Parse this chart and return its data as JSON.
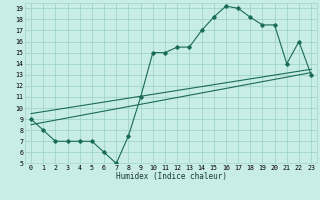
{
  "xlabel": "Humidex (Indice chaleur)",
  "bg_color": "#c8ece6",
  "grid_color": "#a0d4cc",
  "line_color": "#1a6b5a",
  "xlim": [
    -0.5,
    23.5
  ],
  "ylim": [
    5,
    19.5
  ],
  "xticks": [
    0,
    1,
    2,
    3,
    4,
    5,
    6,
    7,
    8,
    9,
    10,
    11,
    12,
    13,
    14,
    15,
    16,
    17,
    18,
    19,
    20,
    21,
    22,
    23
  ],
  "yticks": [
    5,
    6,
    7,
    8,
    9,
    10,
    11,
    12,
    13,
    14,
    15,
    16,
    17,
    18,
    19
  ],
  "line1_x": [
    0,
    1,
    2,
    3,
    4,
    5,
    6,
    7,
    8,
    9,
    10,
    11,
    12,
    13,
    14,
    15,
    16,
    17,
    18,
    19,
    20,
    21,
    22,
    23
  ],
  "line1_y": [
    9,
    8,
    7,
    7,
    7,
    7,
    6,
    5,
    7.5,
    11,
    15,
    15,
    15.5,
    15.5,
    17,
    18.2,
    19.2,
    19,
    18.2,
    17.5,
    17.5,
    14,
    16,
    13
  ],
  "line2_x": [
    0,
    23
  ],
  "line2_y": [
    8.5,
    13.2
  ],
  "line3_x": [
    0,
    23
  ],
  "line3_y": [
    9.5,
    13.5
  ]
}
